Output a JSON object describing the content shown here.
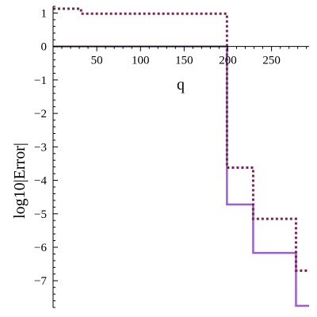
{
  "chart_data": {
    "type": "line",
    "title": "",
    "xlabel": "q",
    "ylabel": "log10|Error|",
    "xlim": [
      0,
      293
    ],
    "ylim": [
      -7.8,
      1.2
    ],
    "x_ticks": [
      50,
      100,
      150,
      200,
      250
    ],
    "y_ticks": [
      1,
      0,
      -1,
      -2,
      -3,
      -4,
      -5,
      -6,
      -7
    ],
    "x_tick_labels": [
      "50",
      "100",
      "150",
      "200",
      "250"
    ],
    "y_tick_labels": [
      "1",
      "0",
      "−1",
      "−2",
      "−3",
      "−4",
      "−5",
      "−6",
      "−7"
    ],
    "grid": false,
    "legend": "none",
    "series": [
      {
        "style": "solid",
        "color": "#9b5fd0",
        "x": [
          0,
          199,
          199,
          229,
          229,
          278,
          278,
          293
        ],
        "y": [
          0,
          0,
          -4.72,
          -4.72,
          -6.17,
          -6.17,
          -7.75,
          -7.75
        ]
      },
      {
        "style": "dotted",
        "color": "#7a2550",
        "x": [
          0,
          32,
          32,
          199,
          199,
          229,
          229,
          278,
          278,
          293
        ],
        "y": [
          1.13,
          1.13,
          0.98,
          0.98,
          -3.62,
          -3.62,
          -5.15,
          -5.15,
          -6.7,
          -6.7
        ]
      }
    ]
  }
}
